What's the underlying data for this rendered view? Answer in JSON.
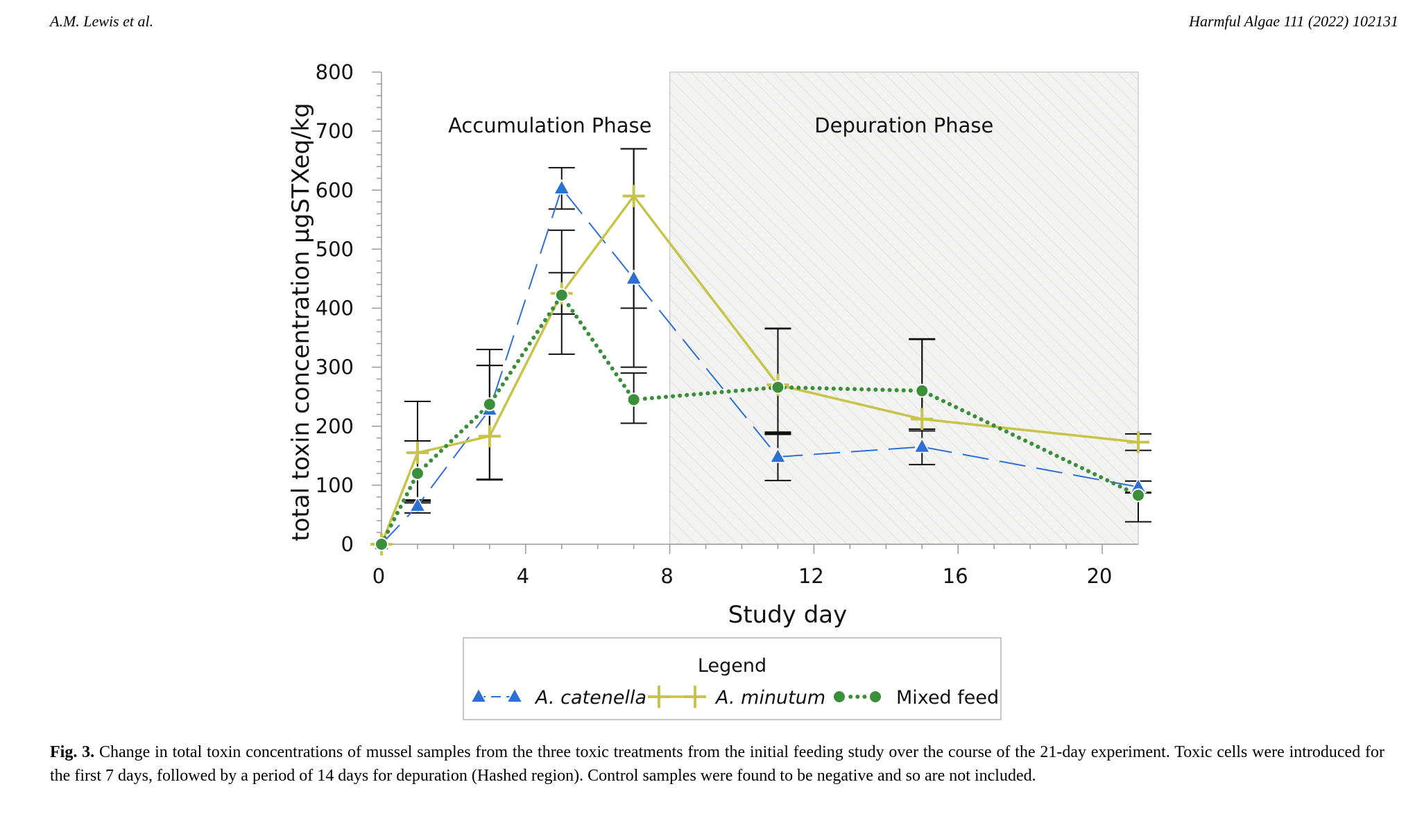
{
  "header": {
    "authors": "A.M. Lewis et al.",
    "journal": "Harmful Algae 111 (2022) 102131"
  },
  "caption": {
    "label": "Fig. 3.",
    "text": "Change in total toxin concentrations of mussel samples from the three toxic treatments from the initial feeding study over the course of the 21-day experiment. Toxic cells were introduced for the first 7 days, followed by a period of 14 days for depuration (Hashed region). Control samples were found to be negative and so are not included."
  },
  "chart_data": {
    "type": "line",
    "title": "",
    "xlabel": "Study day",
    "ylabel": "total toxin concentration µgSTXeq/kg",
    "xlim": [
      0,
      21
    ],
    "ylim": [
      0,
      800
    ],
    "xticks": [
      0,
      4,
      8,
      12,
      16,
      20
    ],
    "yticks": [
      0,
      100,
      200,
      300,
      400,
      500,
      600,
      700,
      800
    ],
    "grid": false,
    "regions": [
      {
        "name": "Accumulation Phase",
        "x": [
          0,
          8
        ],
        "shaded": false
      },
      {
        "name": "Depuration Phase",
        "x": [
          8,
          21
        ],
        "shaded": true,
        "pattern": "hatched"
      }
    ],
    "legend": {
      "title": "Legend",
      "placement": "bottom-center"
    },
    "series": [
      {
        "name": "A. catenella",
        "color": "#2e6fd4",
        "style": "dashed",
        "marker": "triangle",
        "x": [
          0,
          1,
          3,
          5,
          7,
          11,
          15,
          21
        ],
        "y": [
          0,
          65,
          228,
          603,
          450,
          148,
          165,
          97
        ],
        "err_low": [
          0,
          12,
          118,
          35,
          50,
          40,
          30,
          10
        ],
        "err_high": [
          0,
          10,
          75,
          35,
          220,
          40,
          30,
          10
        ]
      },
      {
        "name": "A. minutum",
        "color": "#c8c44a",
        "style": "solid",
        "marker": "plus",
        "x": [
          0,
          1,
          3,
          5,
          7,
          11,
          15,
          21
        ],
        "y": [
          0,
          155,
          183,
          425,
          590,
          270,
          212,
          173
        ],
        "err_low": [
          0,
          85,
          73,
          35,
          290,
          80,
          20,
          14
        ],
        "err_high": [
          0,
          20,
          120,
          35,
          80,
          95,
          135,
          14
        ]
      },
      {
        "name": "Mixed feed",
        "color": "#3b8f3b",
        "style": "dotted",
        "marker": "circle",
        "x": [
          0,
          1,
          3,
          5,
          7,
          11,
          15,
          21
        ],
        "y": [
          0,
          120,
          237,
          422,
          245,
          266,
          260,
          83
        ],
        "err_low": [
          0,
          47,
          128,
          100,
          40,
          80,
          65,
          45
        ],
        "err_high": [
          0,
          122,
          93,
          110,
          45,
          100,
          88,
          5
        ]
      }
    ]
  }
}
